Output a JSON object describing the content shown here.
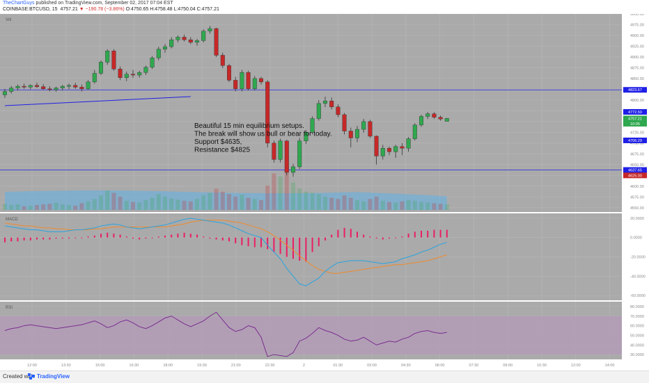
{
  "header": {
    "publisher": "TheChartGuys",
    "published_text": "published on TradingView.com, September 02, 2017 07:04 EST",
    "symbol": "COINBASE:BTCUSD, 15",
    "last": "4757.21",
    "change": "▼ −190.78 (−3.86%)",
    "ohlc": "O:4750.65 H:4758.48 L:4750.04 C:4757.21"
  },
  "panes": {
    "price_label": "Vol",
    "macd_label": "MACD",
    "rsi_label": "RSI"
  },
  "footer": {
    "created": "Created with",
    "brand": "TradingView"
  },
  "colors": {
    "background": "#aaaaaa",
    "up": "#2fa84f",
    "down": "#c62828",
    "hline": "#1f1fe6",
    "trend": "#1f1fe6",
    "macd": "#29a3e0",
    "signal": "#ef8a2d",
    "hist": "#e91e63",
    "rsi": "#7b2d8e",
    "rsi_band": "#b39ab8"
  },
  "annotation": [
    "Beautiful 15 min equilibrium setups.",
    "The break will show us bull or bear for today.",
    "Support $4635,",
    "Resistance $4825"
  ],
  "chart_data": [
    {
      "type": "candlestick",
      "title": "Vol",
      "ylim": [
        4540,
        5000
      ],
      "y_ticks": [
        4550,
        4575,
        4600,
        4625,
        4650,
        4675,
        4700,
        4725,
        4750,
        4775,
        4800,
        4825,
        4850,
        4875,
        4900,
        4925,
        4950,
        4975,
        5000
      ],
      "x_labels": [
        "12:00",
        "13:30",
        "15:00",
        "16:30",
        "18:00",
        "19:30",
        "21:00",
        "22:30",
        "2",
        "01:30",
        "03:00",
        "04:30",
        "06:00",
        "07:30",
        "09:00",
        "10:30",
        "12:00",
        "14:00"
      ],
      "candles": [
        {
          "o": 4812,
          "h": 4826,
          "l": 4805,
          "c": 4820
        },
        {
          "o": 4820,
          "h": 4833,
          "l": 4815,
          "c": 4828
        },
        {
          "o": 4828,
          "h": 4836,
          "l": 4822,
          "c": 4832
        },
        {
          "o": 4832,
          "h": 4838,
          "l": 4826,
          "c": 4830
        },
        {
          "o": 4830,
          "h": 4836,
          "l": 4825,
          "c": 4834
        },
        {
          "o": 4834,
          "h": 4840,
          "l": 4828,
          "c": 4831
        },
        {
          "o": 4831,
          "h": 4837,
          "l": 4824,
          "c": 4826
        },
        {
          "o": 4826,
          "h": 4832,
          "l": 4820,
          "c": 4824
        },
        {
          "o": 4824,
          "h": 4831,
          "l": 4819,
          "c": 4828
        },
        {
          "o": 4828,
          "h": 4835,
          "l": 4822,
          "c": 4832
        },
        {
          "o": 4832,
          "h": 4838,
          "l": 4825,
          "c": 4834
        },
        {
          "o": 4834,
          "h": 4840,
          "l": 4826,
          "c": 4830
        },
        {
          "o": 4830,
          "h": 4836,
          "l": 4820,
          "c": 4826
        },
        {
          "o": 4826,
          "h": 4846,
          "l": 4823,
          "c": 4842
        },
        {
          "o": 4842,
          "h": 4870,
          "l": 4838,
          "c": 4862
        },
        {
          "o": 4862,
          "h": 4892,
          "l": 4858,
          "c": 4888
        },
        {
          "o": 4888,
          "h": 4918,
          "l": 4882,
          "c": 4914
        },
        {
          "o": 4914,
          "h": 4918,
          "l": 4868,
          "c": 4872
        },
        {
          "o": 4872,
          "h": 4878,
          "l": 4846,
          "c": 4852
        },
        {
          "o": 4852,
          "h": 4866,
          "l": 4844,
          "c": 4860
        },
        {
          "o": 4860,
          "h": 4870,
          "l": 4852,
          "c": 4858
        },
        {
          "o": 4858,
          "h": 4868,
          "l": 4852,
          "c": 4864
        },
        {
          "o": 4864,
          "h": 4880,
          "l": 4858,
          "c": 4876
        },
        {
          "o": 4876,
          "h": 4902,
          "l": 4872,
          "c": 4898
        },
        {
          "o": 4898,
          "h": 4924,
          "l": 4892,
          "c": 4918
        },
        {
          "o": 4918,
          "h": 4930,
          "l": 4910,
          "c": 4924
        },
        {
          "o": 4924,
          "h": 4946,
          "l": 4920,
          "c": 4940
        },
        {
          "o": 4940,
          "h": 4950,
          "l": 4934,
          "c": 4946
        },
        {
          "o": 4946,
          "h": 4952,
          "l": 4936,
          "c": 4940
        },
        {
          "o": 4940,
          "h": 4946,
          "l": 4930,
          "c": 4934
        },
        {
          "o": 4934,
          "h": 4942,
          "l": 4926,
          "c": 4938
        },
        {
          "o": 4938,
          "h": 4964,
          "l": 4934,
          "c": 4960
        },
        {
          "o": 4960,
          "h": 4972,
          "l": 4954,
          "c": 4966
        },
        {
          "o": 4966,
          "h": 4968,
          "l": 4900,
          "c": 4904
        },
        {
          "o": 4904,
          "h": 4910,
          "l": 4874,
          "c": 4880
        },
        {
          "o": 4880,
          "h": 4884,
          "l": 4842,
          "c": 4846
        },
        {
          "o": 4846,
          "h": 4854,
          "l": 4820,
          "c": 4826
        },
        {
          "o": 4826,
          "h": 4870,
          "l": 4820,
          "c": 4864
        },
        {
          "o": 4864,
          "h": 4868,
          "l": 4822,
          "c": 4826
        },
        {
          "o": 4826,
          "h": 4856,
          "l": 4822,
          "c": 4850
        },
        {
          "o": 4850,
          "h": 4854,
          "l": 4836,
          "c": 4842
        },
        {
          "o": 4842,
          "h": 4846,
          "l": 4690,
          "c": 4700
        },
        {
          "o": 4700,
          "h": 4706,
          "l": 4655,
          "c": 4662
        },
        {
          "o": 4662,
          "h": 4710,
          "l": 4655,
          "c": 4705
        },
        {
          "o": 4705,
          "h": 4708,
          "l": 4625,
          "c": 4632
        },
        {
          "o": 4632,
          "h": 4652,
          "l": 4622,
          "c": 4645
        },
        {
          "o": 4645,
          "h": 4712,
          "l": 4640,
          "c": 4705
        },
        {
          "o": 4705,
          "h": 4730,
          "l": 4698,
          "c": 4725
        },
        {
          "o": 4725,
          "h": 4762,
          "l": 4720,
          "c": 4757
        },
        {
          "o": 4757,
          "h": 4800,
          "l": 4752,
          "c": 4792
        },
        {
          "o": 4792,
          "h": 4808,
          "l": 4784,
          "c": 4798
        },
        {
          "o": 4798,
          "h": 4806,
          "l": 4778,
          "c": 4784
        },
        {
          "o": 4784,
          "h": 4790,
          "l": 4760,
          "c": 4766
        },
        {
          "o": 4766,
          "h": 4770,
          "l": 4720,
          "c": 4728
        },
        {
          "o": 4728,
          "h": 4736,
          "l": 4690,
          "c": 4712
        },
        {
          "o": 4712,
          "h": 4740,
          "l": 4702,
          "c": 4732
        },
        {
          "o": 4732,
          "h": 4756,
          "l": 4724,
          "c": 4750
        },
        {
          "o": 4750,
          "h": 4754,
          "l": 4712,
          "c": 4716
        },
        {
          "o": 4716,
          "h": 4718,
          "l": 4650,
          "c": 4670
        },
        {
          "o": 4670,
          "h": 4696,
          "l": 4662,
          "c": 4688
        },
        {
          "o": 4688,
          "h": 4692,
          "l": 4672,
          "c": 4680
        },
        {
          "o": 4680,
          "h": 4696,
          "l": 4666,
          "c": 4692
        },
        {
          "o": 4692,
          "h": 4700,
          "l": 4672,
          "c": 4688
        },
        {
          "o": 4688,
          "h": 4714,
          "l": 4680,
          "c": 4710
        },
        {
          "o": 4710,
          "h": 4746,
          "l": 4706,
          "c": 4742
        },
        {
          "o": 4742,
          "h": 4766,
          "l": 4738,
          "c": 4762
        },
        {
          "o": 4762,
          "h": 4772,
          "l": 4756,
          "c": 4768
        },
        {
          "o": 4768,
          "h": 4772,
          "l": 4756,
          "c": 4760
        },
        {
          "o": 4760,
          "h": 4764,
          "l": 4752,
          "c": 4756
        },
        {
          "o": 4750.65,
          "h": 4758.48,
          "l": 4750.04,
          "c": 4757.21
        }
      ],
      "volume": [
        10,
        8,
        9,
        6,
        7,
        8,
        9,
        10,
        12,
        9,
        8,
        7,
        11,
        14,
        18,
        24,
        32,
        28,
        22,
        15,
        13,
        12,
        16,
        20,
        26,
        22,
        19,
        17,
        15,
        14,
        18,
        24,
        28,
        35,
        30,
        26,
        22,
        25,
        20,
        18,
        16,
        40,
        60,
        55,
        70,
        45,
        35,
        30,
        28,
        26,
        22,
        20,
        18,
        24,
        20,
        16,
        14,
        18,
        22,
        15,
        13,
        12,
        14,
        16,
        15,
        13,
        12,
        11,
        10,
        9
      ],
      "horizontal_lines": [
        {
          "price": 4823.67,
          "label": "4823.67"
        },
        {
          "price": 4637.65,
          "label": "4637.65"
        }
      ],
      "trend_line": [
        {
          "bar": 0,
          "price": 4787
        },
        {
          "bar": 29,
          "price": 4808
        }
      ],
      "price_labels": [
        {
          "price": 4772.5,
          "label": "4772.50",
          "color": "#1f1fe6"
        },
        {
          "price": 4757.21,
          "label": "4757.21",
          "color": "#2fa84f"
        },
        {
          "price": 4745,
          "label": "10:05",
          "color": "#2fa84f"
        },
        {
          "price": 4706.29,
          "label": "4706.29",
          "color": "#1f1fe6"
        },
        {
          "price": 4625,
          "label": "4625.00",
          "color": "#c62828"
        }
      ]
    },
    {
      "type": "line",
      "title": "MACD",
      "ylim": [
        -65,
        25
      ],
      "y_ticks": [
        20,
        0,
        -20,
        -40,
        -60
      ],
      "y_tick_labels": [
        "20.0000",
        "0.0000",
        "-20.0000",
        "-40.0000",
        "-60.0000"
      ],
      "series": [
        {
          "name": "MACD",
          "values": [
            12,
            11,
            10,
            9,
            8,
            8,
            7,
            6,
            6,
            6,
            7,
            8,
            8,
            9,
            10,
            12,
            13,
            14,
            13,
            11,
            10,
            9,
            10,
            11,
            12,
            13,
            15,
            17,
            19,
            20,
            19,
            18,
            17,
            16,
            15,
            13,
            10,
            7,
            4,
            2,
            0,
            -8,
            -15,
            -22,
            -32,
            -40,
            -48,
            -50,
            -46,
            -42,
            -35,
            -30,
            -26,
            -25,
            -24,
            -24,
            -24,
            -25,
            -26,
            -27,
            -26,
            -25,
            -22,
            -20,
            -18,
            -15,
            -13,
            -10,
            -7,
            -5
          ]
        },
        {
          "name": "Signal",
          "values": [
            15,
            14,
            13,
            12,
            12,
            11,
            10,
            10,
            9,
            9,
            8,
            8,
            8,
            8,
            9,
            9,
            10,
            11,
            11,
            11,
            11,
            11,
            11,
            11,
            11,
            11,
            12,
            13,
            14,
            16,
            17,
            18,
            18,
            18,
            18,
            17,
            16,
            15,
            13,
            11,
            9,
            6,
            2,
            -3,
            -8,
            -13,
            -19,
            -24,
            -29,
            -33,
            -35,
            -37,
            -37,
            -36,
            -35,
            -34,
            -33,
            -32,
            -31,
            -30,
            -29,
            -28,
            -28,
            -27,
            -26,
            -25,
            -24,
            -22,
            -20,
            -18
          ]
        },
        {
          "name": "Histogram",
          "values": [
            -5,
            -4,
            -4,
            -3,
            -3,
            -2,
            -2,
            -2,
            -1,
            -1,
            -1,
            0,
            0,
            1,
            2,
            4,
            5,
            4,
            3,
            1,
            -1,
            -2,
            -1,
            0,
            1,
            2,
            3,
            4,
            5,
            4,
            3,
            1,
            -1,
            -2,
            -3,
            -4,
            -6,
            -8,
            -9,
            -10,
            -10,
            -12,
            -15,
            -17,
            -20,
            -22,
            -24,
            -25,
            -15,
            -9,
            -3,
            3,
            8,
            10,
            9,
            6,
            3,
            1,
            -1,
            -2,
            -1,
            0,
            1,
            4,
            6,
            7,
            7,
            8,
            8,
            8
          ]
        }
      ]
    },
    {
      "type": "line",
      "title": "RSI",
      "ylim": [
        25,
        85
      ],
      "y_ticks": [
        80,
        70,
        60,
        50,
        40,
        30
      ],
      "y_tick_labels": [
        "80.0000",
        "70.0000",
        "60.0000",
        "50.0000",
        "40.0000",
        "30.0000"
      ],
      "band": [
        30,
        70
      ],
      "series": [
        {
          "name": "RSI",
          "values": [
            55,
            57,
            58,
            60,
            61,
            60,
            59,
            58,
            57,
            58,
            59,
            60,
            61,
            63,
            65,
            62,
            58,
            60,
            64,
            66,
            63,
            59,
            57,
            60,
            64,
            68,
            70,
            66,
            62,
            59,
            62,
            65,
            70,
            74,
            66,
            58,
            54,
            56,
            60,
            58,
            48,
            28,
            30,
            29,
            28,
            32,
            44,
            47,
            52,
            58,
            55,
            53,
            50,
            46,
            44,
            45,
            48,
            44,
            40,
            42,
            44,
            43,
            46,
            48,
            52,
            54,
            55,
            53,
            52,
            53
          ]
        }
      ]
    }
  ]
}
